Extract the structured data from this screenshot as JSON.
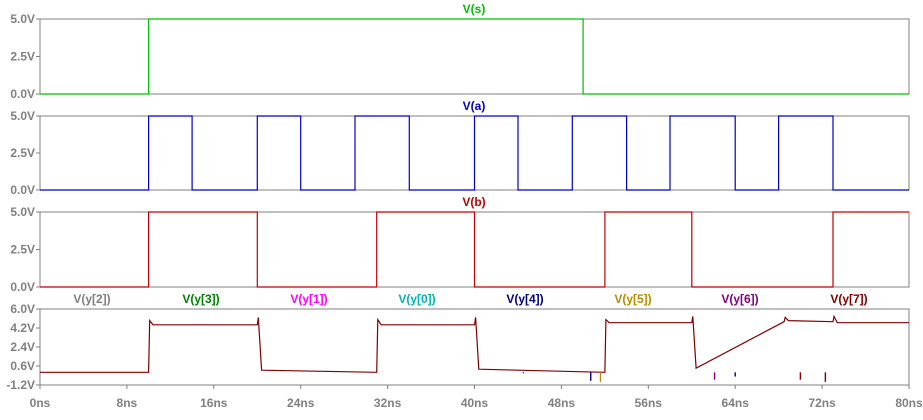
{
  "chart_data": [
    {
      "type": "line",
      "title": "V(s)",
      "ylim": [
        0,
        5
      ],
      "yticks": [
        "5.0V",
        "2.5V",
        "0.0V"
      ],
      "ytick_values": [
        5,
        2.5,
        0
      ],
      "series": [
        {
          "name": "V(s)",
          "color": "#00c000",
          "x": [
            0,
            10,
            10,
            50,
            50,
            80
          ],
          "y": [
            0,
            0,
            5,
            5,
            0,
            0
          ]
        }
      ]
    },
    {
      "type": "line",
      "title": "V(a)",
      "ylim": [
        0,
        5
      ],
      "yticks": [
        "5.0V",
        "2.5V",
        "0.0V"
      ],
      "ytick_values": [
        5,
        2.5,
        0
      ],
      "series": [
        {
          "name": "V(a)",
          "color": "#0000c8",
          "x": [
            0,
            10,
            10,
            14,
            14,
            20,
            20,
            24,
            24,
            29,
            29,
            34,
            34,
            40,
            40,
            44,
            44,
            49,
            49,
            54,
            54,
            58,
            58,
            64,
            64,
            68,
            68,
            73,
            73,
            80
          ],
          "y": [
            0,
            0,
            5,
            5,
            0,
            0,
            5,
            5,
            0,
            0,
            5,
            5,
            0,
            0,
            5,
            5,
            0,
            0,
            5,
            5,
            0,
            0,
            5,
            5,
            0,
            0,
            5,
            5,
            0,
            0
          ]
        }
      ]
    },
    {
      "type": "line",
      "title": "V(b)",
      "ylim": [
        0,
        5
      ],
      "yticks": [
        "5.0V",
        "2.5V",
        "0.0V"
      ],
      "ytick_values": [
        5,
        2.5,
        0
      ],
      "series": [
        {
          "name": "V(b)",
          "color": "#c00000",
          "x": [
            0,
            10,
            10,
            20,
            20,
            31,
            31,
            40,
            40,
            52,
            52,
            60,
            60,
            73,
            73,
            80
          ],
          "y": [
            0,
            0,
            5,
            5,
            0,
            0,
            5,
            5,
            0,
            0,
            5,
            5,
            0,
            0,
            5,
            5
          ]
        }
      ]
    },
    {
      "type": "line",
      "ylim": [
        -1.2,
        6.0
      ],
      "yticks": [
        "6.0V",
        "4.2V",
        "2.4V",
        "0.6V",
        "-1.2V"
      ],
      "ytick_values": [
        6.0,
        4.2,
        2.4,
        0.6,
        -1.2
      ],
      "xlim": [
        0,
        80
      ],
      "xticks": [
        "0ns",
        "8ns",
        "16ns",
        "24ns",
        "32ns",
        "40ns",
        "48ns",
        "56ns",
        "64ns",
        "72ns",
        "80ns"
      ],
      "xtick_values": [
        0,
        8,
        16,
        24,
        32,
        40,
        48,
        56,
        64,
        72,
        80
      ],
      "legend": [
        {
          "name": "V(y[2])",
          "color": "#808080"
        },
        {
          "name": "V(y[3])",
          "color": "#008000"
        },
        {
          "name": "V(y[1])",
          "color": "#ff00ff"
        },
        {
          "name": "V(y[0])",
          "color": "#00b4b4"
        },
        {
          "name": "V(y[4])",
          "color": "#000080"
        },
        {
          "name": "V(y[5])",
          "color": "#b48c00"
        },
        {
          "name": "V(y[6])",
          "color": "#800080"
        },
        {
          "name": "V(y[7])",
          "color": "#800000"
        }
      ],
      "series": [
        {
          "name": "V(y[7])",
          "color": "#800000",
          "x": [
            0,
            10,
            10.1,
            10.4,
            20,
            20.1,
            20.4,
            31,
            31.1,
            31.4,
            40,
            40.1,
            40.4,
            52,
            52.1,
            52.4,
            60,
            60.1,
            60.4,
            68.5,
            68.6,
            68.9,
            73,
            73.1,
            73.4,
            80
          ],
          "y": [
            0,
            0,
            4.9,
            4.5,
            4.5,
            5.2,
            0.2,
            0,
            5.0,
            4.5,
            4.5,
            5.2,
            0.3,
            0,
            5.0,
            4.7,
            4.7,
            5.3,
            0.4,
            4.8,
            5.2,
            4.9,
            4.8,
            5.3,
            4.7,
            4.7
          ]
        }
      ],
      "spikes": [
        {
          "x": 44.5,
          "y": -0.1,
          "color": "#000080"
        },
        {
          "x": 50.7,
          "y": -0.8,
          "color": "#000080"
        },
        {
          "x": 51.6,
          "y": -0.9,
          "color": "#b48c00"
        },
        {
          "x": 62.1,
          "y": -0.7,
          "color": "#800080"
        },
        {
          "x": 64.0,
          "y": -0.4,
          "color": "#000080"
        },
        {
          "x": 70.0,
          "y": -0.7,
          "color": "#800000"
        },
        {
          "x": 72.3,
          "y": -0.9,
          "color": "#800000"
        }
      ]
    }
  ]
}
